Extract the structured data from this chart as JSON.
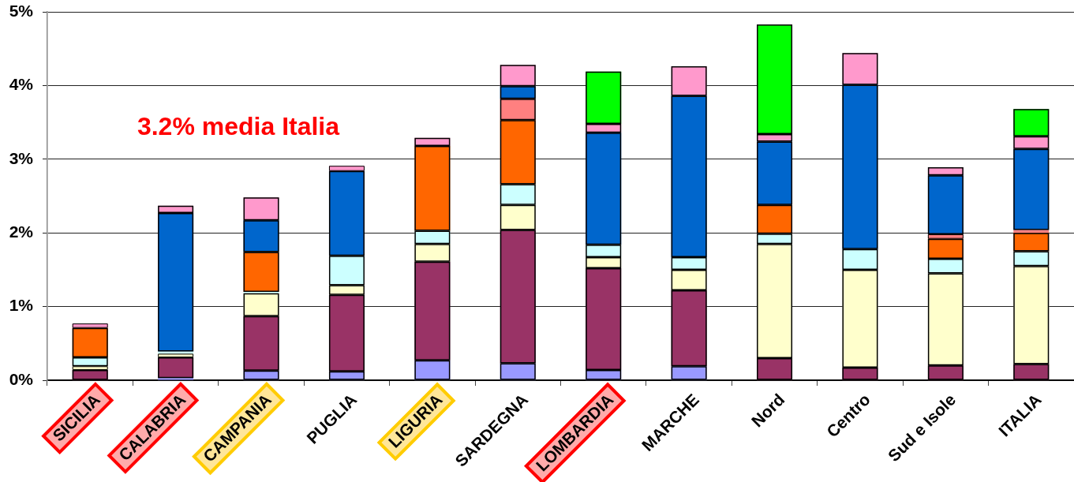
{
  "chart_data": {
    "type": "bar",
    "stacked": true,
    "grid": "y",
    "categories": [
      "SICILIA",
      "CALABRIA",
      "CAMPANIA",
      "PUGLIA",
      "LIGURIA",
      "SARDEGNA",
      "LOMBARDIA",
      "MARCHE",
      "Nord",
      "Centro",
      "Sud e Isole",
      "ITALIA"
    ],
    "ylim": [
      0,
      5
    ],
    "yticks": [
      {
        "value": 0,
        "label": "0%"
      },
      {
        "value": 1,
        "label": "1%"
      },
      {
        "value": 2,
        "label": "2%"
      },
      {
        "value": 3,
        "label": "3%"
      },
      {
        "value": 4,
        "label": "4%"
      },
      {
        "value": 5,
        "label": "5%"
      }
    ],
    "annotations": [
      "3.2% media Italia"
    ],
    "series": [
      {
        "color": "#9999ff",
        "values": [
          null,
          0.03,
          0.13,
          0.12,
          0.27,
          0.23,
          0.14,
          0.19,
          null,
          null,
          null,
          null
        ]
      },
      {
        "color": "#993366",
        "values": [
          0.14,
          0.28,
          0.74,
          1.04,
          1.34,
          1.81,
          1.38,
          1.03,
          0.3,
          0.17,
          0.2,
          0.22
        ]
      },
      {
        "color": "#ffffcc",
        "values": [
          0.05,
          0.05,
          0.31,
          0.13,
          0.24,
          0.34,
          0.15,
          0.28,
          1.55,
          1.33,
          1.25,
          1.33
        ]
      },
      {
        "color": "#ccffff",
        "values": [
          0.12,
          0.03,
          0.02,
          0.4,
          0.18,
          0.28,
          0.17,
          0.17,
          0.14,
          0.28,
          0.2,
          0.2
        ]
      },
      {
        "color": "#ff6600",
        "values": [
          0.4,
          null,
          0.54,
          null,
          1.15,
          0.87,
          null,
          null,
          0.39,
          null,
          0.27,
          0.25
        ]
      },
      {
        "color": "#ff8080",
        "values": [
          null,
          null,
          null,
          null,
          null,
          0.29,
          null,
          null,
          null,
          null,
          0.06,
          0.04
        ]
      },
      {
        "color": "#0066cc",
        "values": [
          null,
          1.88,
          0.43,
          1.15,
          null,
          0.17,
          1.52,
          2.19,
          0.86,
          2.23,
          0.8,
          1.1
        ]
      },
      {
        "color": "#ff99cc",
        "values": [
          0.06,
          0.1,
          0.31,
          0.07,
          0.11,
          0.29,
          0.12,
          0.4,
          0.1,
          0.43,
          0.11,
          0.17
        ]
      },
      {
        "color": "#00ff00",
        "values": [
          null,
          null,
          null,
          null,
          null,
          null,
          0.71,
          null,
          1.49,
          null,
          null,
          0.37
        ]
      }
    ]
  }
}
